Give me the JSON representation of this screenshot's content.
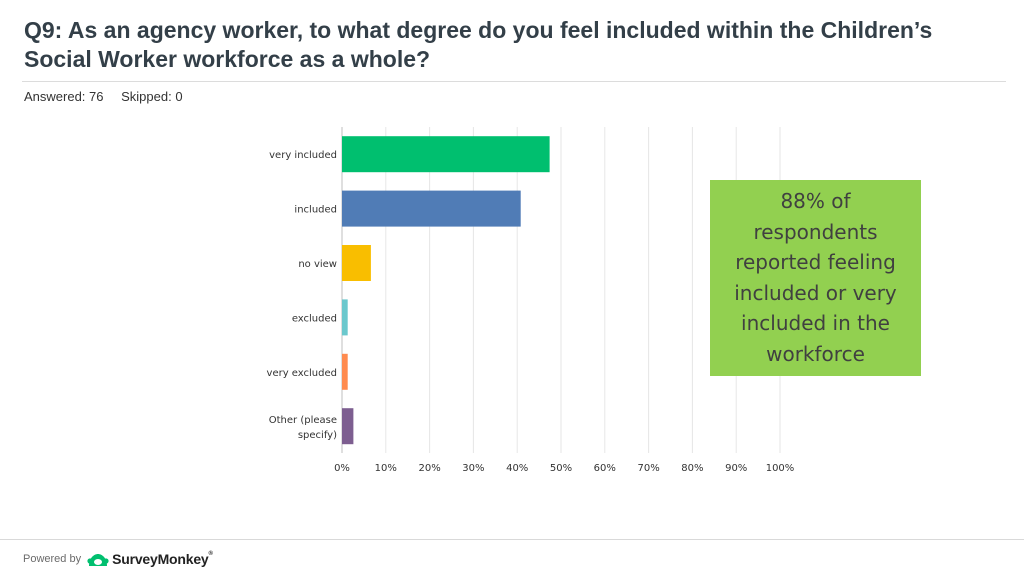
{
  "header": {
    "question": "Q9: As an agency worker, to what degree do you feel included within the Children’s Social Worker workforce as a whole?",
    "answered": "Answered: 76",
    "skipped": "Skipped: 0"
  },
  "callout": {
    "text": "88% of respondents reported feeling included or very included in the workforce",
    "background": "#92d050"
  },
  "footer": {
    "powered_by": "Powered by",
    "brand": "SurveyMonkey",
    "trademark": "®",
    "brand_color": "#00bf6f"
  },
  "chart_data": {
    "type": "bar",
    "orientation": "horizontal",
    "categories": [
      "very included",
      "included",
      "no view",
      "excluded",
      "very excluded",
      "Other (please specify)"
    ],
    "values": [
      47.4,
      40.8,
      6.6,
      1.3,
      1.3,
      2.6
    ],
    "colors": [
      "#00bf6f",
      "#507cb6",
      "#f9be00",
      "#6bc8cd",
      "#ff8b4f",
      "#7d5e90"
    ],
    "xlim": [
      0,
      100
    ],
    "xticks": [
      "0%",
      "10%",
      "20%",
      "30%",
      "40%",
      "50%",
      "60%",
      "70%",
      "80%",
      "90%",
      "100%"
    ],
    "grid": true,
    "title": "",
    "xlabel": "",
    "ylabel": ""
  }
}
